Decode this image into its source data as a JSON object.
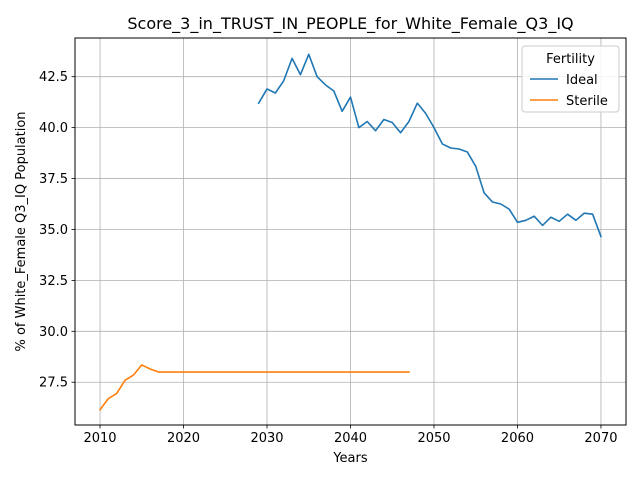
{
  "chart_data": {
    "type": "line",
    "title": "Score_3_in_TRUST_IN_PEOPLE_for_White_Female_Q3_IQ",
    "xlabel": "Years",
    "ylabel": "% of White_Female Q3_IQ Population",
    "xlim": [
      2007,
      2073
    ],
    "ylim": [
      25.4,
      44.4
    ],
    "xticks": [
      2010,
      2020,
      2030,
      2040,
      2050,
      2060,
      2070
    ],
    "yticks": [
      27.5,
      30.0,
      32.5,
      35.0,
      37.5,
      40.0,
      42.5
    ],
    "ytick_labels": [
      "27.5",
      "30.0",
      "32.5",
      "35.0",
      "37.5",
      "40.0",
      "42.5"
    ],
    "grid": true,
    "legend": {
      "title": "Fertility",
      "position": "upper right"
    },
    "series": [
      {
        "name": "Ideal",
        "color": "#1f77b4",
        "x": [
          2029,
          2030,
          2031,
          2032,
          2033,
          2034,
          2035,
          2036,
          2037,
          2038,
          2039,
          2040,
          2041,
          2042,
          2043,
          2044,
          2045,
          2046,
          2047,
          2048,
          2049,
          2050,
          2051,
          2052,
          2053,
          2054,
          2055,
          2056,
          2057,
          2058,
          2059,
          2060,
          2061,
          2062,
          2063,
          2064,
          2065,
          2066,
          2067,
          2068,
          2069,
          2070
        ],
        "y": [
          41.2,
          41.9,
          41.7,
          42.3,
          43.4,
          42.6,
          43.6,
          42.5,
          42.1,
          41.8,
          40.8,
          41.5,
          40.0,
          40.3,
          39.85,
          40.4,
          40.25,
          39.75,
          40.3,
          41.2,
          40.7,
          40.0,
          39.2,
          39.0,
          38.95,
          38.8,
          38.1,
          36.8,
          36.35,
          36.25,
          36.0,
          35.35,
          35.45,
          35.65,
          35.2,
          35.6,
          35.4,
          35.75,
          35.45,
          35.8,
          35.75,
          34.65
        ]
      },
      {
        "name": "Sterile",
        "color": "#ff7f0e",
        "x": [
          2010,
          2011,
          2012,
          2013,
          2014,
          2015,
          2016,
          2017,
          2018,
          2019,
          2020,
          2021,
          2022,
          2023,
          2024,
          2025,
          2026,
          2027,
          2028,
          2029,
          2030,
          2031,
          2032,
          2033,
          2034,
          2035,
          2036,
          2037,
          2038,
          2039,
          2040,
          2041,
          2042,
          2043,
          2044,
          2045,
          2046,
          2047
        ],
        "y": [
          26.15,
          26.7,
          26.95,
          27.6,
          27.85,
          28.35,
          28.15,
          28.0,
          28.0,
          28.0,
          28.0,
          28.0,
          28.0,
          28.0,
          28.0,
          28.0,
          28.0,
          28.0,
          28.0,
          28.0,
          28.0,
          28.0,
          28.0,
          28.0,
          28.0,
          28.0,
          28.0,
          28.0,
          28.0,
          28.0,
          28.0,
          28.0,
          28.0,
          28.0,
          28.0,
          28.0,
          28.0,
          28.0
        ]
      }
    ]
  }
}
